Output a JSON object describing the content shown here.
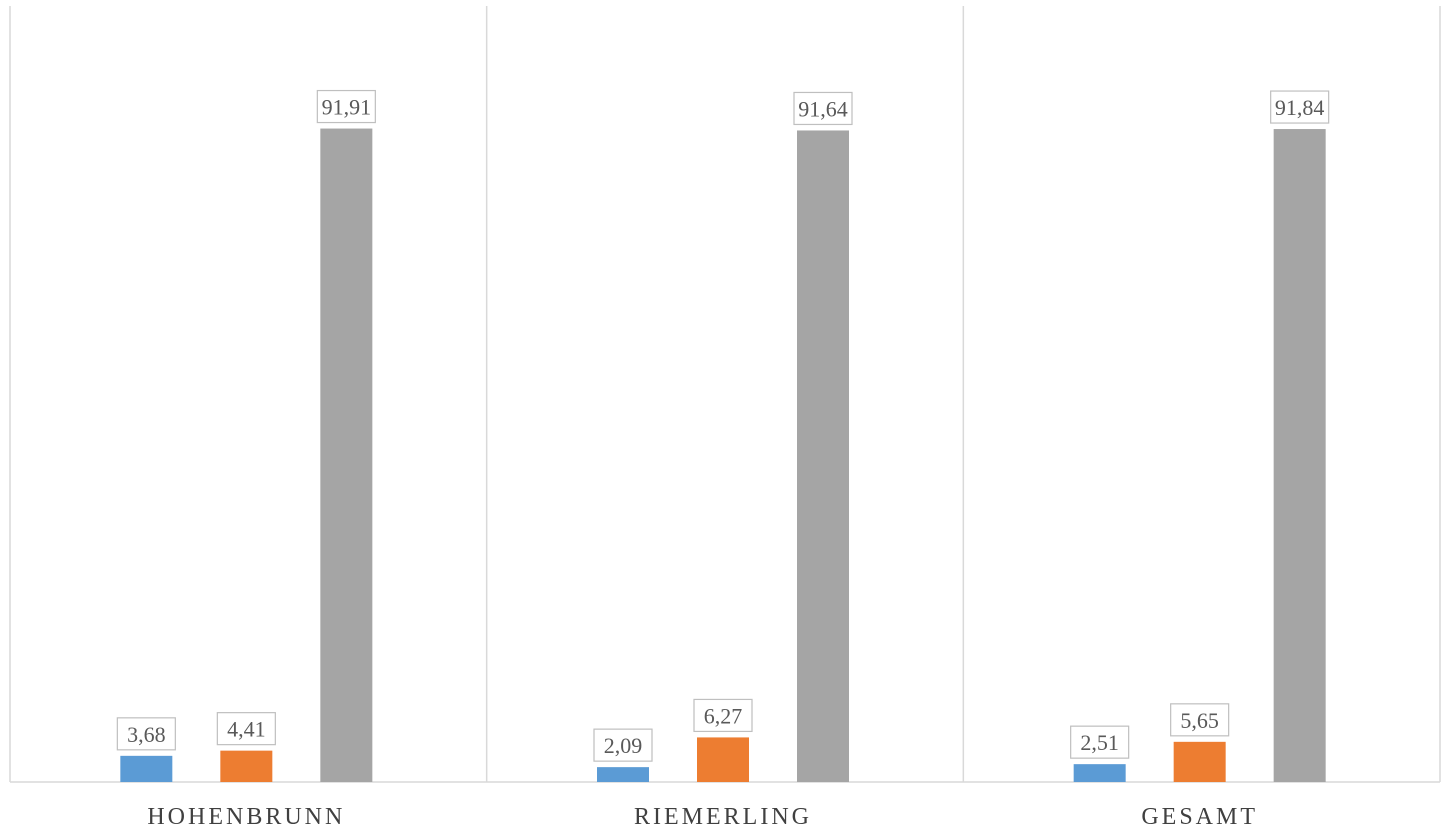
{
  "chart_data": {
    "type": "bar",
    "categories": [
      "HOHENBRUNN",
      "RIEMERLING",
      "GESAMT"
    ],
    "series": [
      {
        "values": [
          3.68,
          2.09,
          2.51
        ],
        "labels": [
          "3,68",
          "2,09",
          "2,51"
        ],
        "color": "#5B9BD5"
      },
      {
        "values": [
          4.41,
          6.27,
          5.65
        ],
        "labels": [
          "4,41",
          "6,27",
          "5,65"
        ],
        "color": "#ED7D31"
      },
      {
        "values": [
          91.91,
          91.64,
          91.84
        ],
        "labels": [
          "91,91",
          "91,64",
          "91,84"
        ],
        "color": "#A5A5A5"
      }
    ],
    "ylim": [
      0,
      100
    ],
    "grid": false,
    "legend": "none"
  }
}
